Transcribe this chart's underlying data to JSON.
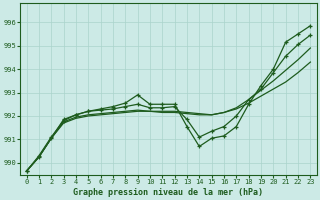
{
  "title": "Graphe pression niveau de la mer (hPa)",
  "background_color": "#cceae6",
  "grid_color": "#aad4cc",
  "line_color": "#1e5c1e",
  "ylim": [
    989.5,
    996.8
  ],
  "xlim": [
    -0.5,
    23.5
  ],
  "yticks": [
    990,
    991,
    992,
    993,
    994,
    995,
    996
  ],
  "xticks": [
    0,
    1,
    2,
    3,
    4,
    5,
    6,
    7,
    8,
    9,
    10,
    11,
    12,
    13,
    14,
    15,
    16,
    17,
    18,
    19,
    20,
    21,
    22,
    23
  ],
  "series_with_markers": [
    [
      989.65,
      990.25,
      991.05,
      991.85,
      992.05,
      992.2,
      992.3,
      992.4,
      992.55,
      992.9,
      992.5,
      992.5,
      992.5,
      991.55,
      990.7,
      991.05,
      991.15,
      991.55,
      992.5,
      993.3,
      994.0,
      995.15,
      995.5,
      995.85
    ],
    [
      989.65,
      990.3,
      991.1,
      991.8,
      992.05,
      992.2,
      992.25,
      992.3,
      992.4,
      992.5,
      992.35,
      992.35,
      992.4,
      991.85,
      991.1,
      991.35,
      991.55,
      992.0,
      992.7,
      993.15,
      993.85,
      994.55,
      995.05,
      995.45
    ]
  ],
  "series_smooth": [
    [
      989.65,
      990.25,
      991.05,
      991.75,
      991.95,
      992.05,
      992.1,
      992.15,
      992.2,
      992.25,
      992.2,
      992.15,
      992.15,
      992.1,
      992.05,
      992.05,
      992.15,
      992.35,
      992.7,
      993.1,
      993.5,
      993.95,
      994.4,
      994.9
    ],
    [
      989.65,
      990.25,
      991.05,
      991.7,
      991.9,
      992.0,
      992.05,
      992.1,
      992.15,
      992.2,
      992.2,
      992.2,
      992.2,
      992.15,
      992.1,
      992.05,
      992.15,
      992.3,
      992.55,
      992.85,
      993.15,
      993.45,
      993.85,
      994.3
    ]
  ]
}
